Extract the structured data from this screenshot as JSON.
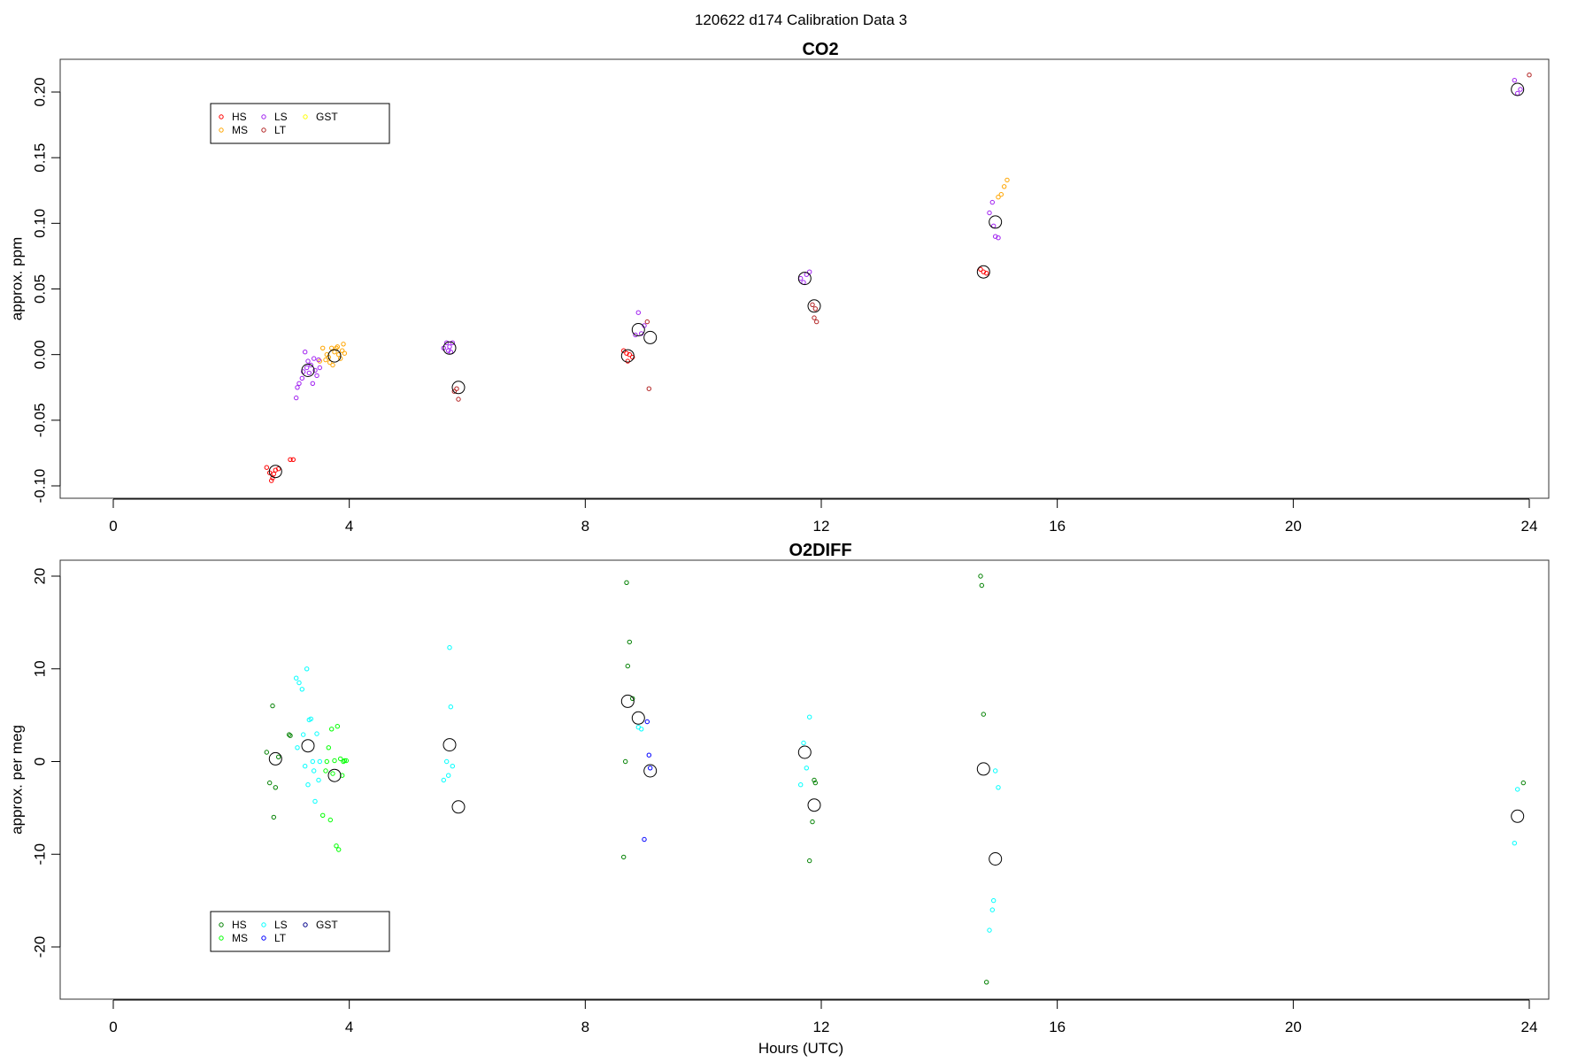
{
  "figure": {
    "title": "120622   d174   Calibration Data 3"
  },
  "chart_data": [
    {
      "type": "scatter",
      "title": "CO2",
      "xlabel": "",
      "ylabel": "approx. ppm",
      "xlim": [
        0,
        24
      ],
      "ylim": [
        -0.1,
        0.2
      ],
      "xticks": [
        "0",
        "4",
        "8",
        "12",
        "16",
        "20",
        "24"
      ],
      "yticks": [
        "-0.10",
        "-0.05",
        "0.00",
        "0.05",
        "0.10",
        "0.15",
        "0.20"
      ],
      "grid": false,
      "legend_position": "top-left",
      "series": [
        {
          "name": "HS",
          "color": "#ff0000",
          "points": [
            [
              2.6,
              -0.086
            ],
            [
              2.65,
              -0.09
            ],
            [
              2.7,
              -0.094
            ],
            [
              2.72,
              -0.091
            ],
            [
              2.75,
              -0.088
            ],
            [
              2.8,
              -0.087
            ],
            [
              2.68,
              -0.096
            ],
            [
              3.0,
              -0.08
            ],
            [
              3.05,
              -0.08
            ],
            [
              8.65,
              0.003
            ],
            [
              8.7,
              0.001
            ],
            [
              8.72,
              -0.005
            ],
            [
              8.75,
              0.0
            ],
            [
              8.8,
              -0.002
            ],
            [
              14.7,
              0.065
            ],
            [
              14.75,
              0.063
            ],
            [
              14.8,
              0.062
            ]
          ]
        },
        {
          "name": "MS",
          "color": "#ffa500",
          "points": [
            [
              3.5,
              -0.005
            ],
            [
              3.6,
              -0.004
            ],
            [
              3.62,
              0.0
            ],
            [
              3.65,
              -0.002
            ],
            [
              3.7,
              0.005
            ],
            [
              3.72,
              -0.008
            ],
            [
              3.75,
              0.002
            ],
            [
              3.78,
              0.005
            ],
            [
              3.8,
              0.006
            ],
            [
              3.82,
              0.0
            ],
            [
              3.85,
              -0.003
            ],
            [
              3.88,
              0.003
            ],
            [
              3.9,
              0.008
            ],
            [
              3.92,
              0.001
            ],
            [
              3.55,
              0.005
            ],
            [
              3.67,
              -0.006
            ],
            [
              15.0,
              0.12
            ],
            [
              15.05,
              0.122
            ],
            [
              15.1,
              0.128
            ],
            [
              15.15,
              0.133
            ]
          ]
        },
        {
          "name": "LS",
          "color": "#a020f0",
          "points": [
            [
              3.1,
              -0.033
            ],
            [
              3.12,
              -0.025
            ],
            [
              3.15,
              -0.022
            ],
            [
              3.2,
              -0.018
            ],
            [
              3.22,
              -0.013
            ],
            [
              3.25,
              0.002
            ],
            [
              3.28,
              -0.01
            ],
            [
              3.3,
              -0.005
            ],
            [
              3.32,
              -0.014
            ],
            [
              3.35,
              -0.008
            ],
            [
              3.38,
              -0.022
            ],
            [
              3.4,
              -0.003
            ],
            [
              3.42,
              -0.012
            ],
            [
              3.45,
              -0.016
            ],
            [
              3.48,
              -0.004
            ],
            [
              3.5,
              -0.01
            ],
            [
              5.6,
              0.005
            ],
            [
              5.65,
              0.009
            ],
            [
              5.68,
              0.003
            ],
            [
              5.7,
              0.006
            ],
            [
              5.72,
              0.002
            ],
            [
              5.75,
              0.009
            ],
            [
              8.85,
              0.015
            ],
            [
              8.9,
              0.032
            ],
            [
              8.95,
              0.016
            ],
            [
              9.0,
              0.022
            ],
            [
              11.65,
              0.058
            ],
            [
              11.7,
              0.055
            ],
            [
              11.75,
              0.061
            ],
            [
              11.8,
              0.063
            ],
            [
              14.85,
              0.108
            ],
            [
              14.9,
              0.116
            ],
            [
              14.92,
              0.098
            ],
            [
              14.95,
              0.09
            ],
            [
              15.0,
              0.089
            ],
            [
              23.75,
              0.209
            ],
            [
              23.8,
              0.199
            ],
            [
              23.85,
              0.202
            ]
          ]
        },
        {
          "name": "LT",
          "color": "#b22222",
          "points": [
            [
              5.78,
              -0.028
            ],
            [
              5.82,
              -0.026
            ],
            [
              5.85,
              -0.034
            ],
            [
              9.05,
              0.025
            ],
            [
              9.08,
              -0.026
            ],
            [
              11.85,
              0.038
            ],
            [
              11.88,
              0.028
            ],
            [
              11.92,
              0.025
            ],
            [
              11.9,
              0.035
            ],
            [
              24.0,
              0.213
            ]
          ]
        },
        {
          "name": "GST",
          "color": "#ffff00",
          "points": []
        },
        {
          "name": "",
          "color": "#000000",
          "marker": "mean",
          "points": [
            [
              2.75,
              -0.089
            ],
            [
              3.3,
              -0.012
            ],
            [
              3.75,
              -0.001
            ],
            [
              5.7,
              0.005
            ],
            [
              5.85,
              -0.025
            ],
            [
              8.72,
              -0.001
            ],
            [
              8.9,
              0.019
            ],
            [
              9.1,
              0.013
            ],
            [
              11.72,
              0.058
            ],
            [
              11.88,
              0.037
            ],
            [
              14.75,
              0.063
            ],
            [
              14.95,
              0.101
            ],
            [
              23.8,
              0.202
            ]
          ]
        }
      ]
    },
    {
      "type": "scatter",
      "title": "O2DIFF",
      "xlabel": "Hours (UTC)",
      "ylabel": "approx. per meg",
      "xlim": [
        0,
        24
      ],
      "ylim": [
        -25,
        20
      ],
      "xticks": [
        "0",
        "4",
        "8",
        "12",
        "16",
        "20",
        "24"
      ],
      "yticks": [
        "-20",
        "-10",
        "0",
        "10",
        "20"
      ],
      "grid": false,
      "legend_position": "bottom-left",
      "series": [
        {
          "name": "HS",
          "color": "#008000",
          "points": [
            [
              2.6,
              1.0
            ],
            [
              2.65,
              -2.3
            ],
            [
              2.7,
              6.0
            ],
            [
              2.72,
              -6.0
            ],
            [
              2.75,
              -2.8
            ],
            [
              2.8,
              0.5
            ],
            [
              2.98,
              2.9
            ],
            [
              3.0,
              2.8
            ],
            [
              8.65,
              -10.3
            ],
            [
              8.68,
              0.0
            ],
            [
              8.7,
              19.3
            ],
            [
              8.75,
              12.9
            ],
            [
              8.72,
              10.3
            ],
            [
              8.8,
              6.8
            ],
            [
              11.8,
              -10.7
            ],
            [
              11.85,
              -6.5
            ],
            [
              11.88,
              -2.0
            ],
            [
              11.9,
              -2.3
            ],
            [
              14.7,
              20.0
            ],
            [
              14.72,
              19.0
            ],
            [
              14.75,
              5.1
            ],
            [
              14.8,
              -23.8
            ],
            [
              23.9,
              -2.3
            ]
          ]
        },
        {
          "name": "MS",
          "color": "#00ff00",
          "points": [
            [
              3.55,
              -5.8
            ],
            [
              3.6,
              -1.0
            ],
            [
              3.62,
              0.0
            ],
            [
              3.65,
              1.5
            ],
            [
              3.68,
              -6.3
            ],
            [
              3.7,
              3.5
            ],
            [
              3.72,
              -1.3
            ],
            [
              3.75,
              0.1
            ],
            [
              3.78,
              -9.1
            ],
            [
              3.8,
              3.8
            ],
            [
              3.82,
              -9.5
            ],
            [
              3.85,
              0.3
            ],
            [
              3.88,
              -1.5
            ],
            [
              3.9,
              0.0
            ],
            [
              3.92,
              0.1
            ],
            [
              3.95,
              0.1
            ]
          ]
        },
        {
          "name": "LS",
          "color": "#00ffff",
          "points": [
            [
              3.1,
              9.0
            ],
            [
              3.12,
              1.5
            ],
            [
              3.15,
              8.5
            ],
            [
              3.2,
              7.8
            ],
            [
              3.22,
              2.9
            ],
            [
              3.25,
              -0.5
            ],
            [
              3.28,
              10.0
            ],
            [
              3.3,
              -2.5
            ],
            [
              3.32,
              4.5
            ],
            [
              3.35,
              4.6
            ],
            [
              3.38,
              0.0
            ],
            [
              3.4,
              -1.0
            ],
            [
              3.42,
              -4.3
            ],
            [
              3.45,
              3.0
            ],
            [
              3.48,
              -2.0
            ],
            [
              3.5,
              0.0
            ],
            [
              5.6,
              -2.0
            ],
            [
              5.65,
              0.0
            ],
            [
              5.68,
              -1.5
            ],
            [
              5.7,
              12.3
            ],
            [
              5.72,
              5.9
            ],
            [
              5.75,
              -0.5
            ],
            [
              8.9,
              3.7
            ],
            [
              8.95,
              3.5
            ],
            [
              11.65,
              -2.5
            ],
            [
              11.7,
              2.0
            ],
            [
              11.75,
              -0.7
            ],
            [
              11.8,
              4.8
            ],
            [
              14.85,
              -18.2
            ],
            [
              14.9,
              -16.0
            ],
            [
              14.92,
              -15.0
            ],
            [
              14.95,
              -1.0
            ],
            [
              15.0,
              -2.8
            ],
            [
              23.75,
              -8.8
            ],
            [
              23.8,
              -3.0
            ]
          ]
        },
        {
          "name": "LT",
          "color": "#0000ff",
          "points": [
            [
              9.0,
              -8.4
            ],
            [
              9.05,
              4.3
            ],
            [
              9.08,
              0.7
            ],
            [
              9.1,
              -0.7
            ]
          ]
        },
        {
          "name": "GST",
          "color": "#00008b",
          "points": []
        },
        {
          "name": "",
          "color": "#000000",
          "marker": "mean",
          "points": [
            [
              2.75,
              0.3
            ],
            [
              3.3,
              1.7
            ],
            [
              3.75,
              -1.5
            ],
            [
              5.7,
              1.8
            ],
            [
              5.85,
              -4.9
            ],
            [
              8.72,
              6.5
            ],
            [
              8.9,
              4.7
            ],
            [
              9.1,
              -1.0
            ],
            [
              11.72,
              1.0
            ],
            [
              11.88,
              -4.7
            ],
            [
              14.75,
              -0.8
            ],
            [
              14.95,
              -10.5
            ],
            [
              23.8,
              -5.9
            ]
          ]
        }
      ]
    }
  ]
}
